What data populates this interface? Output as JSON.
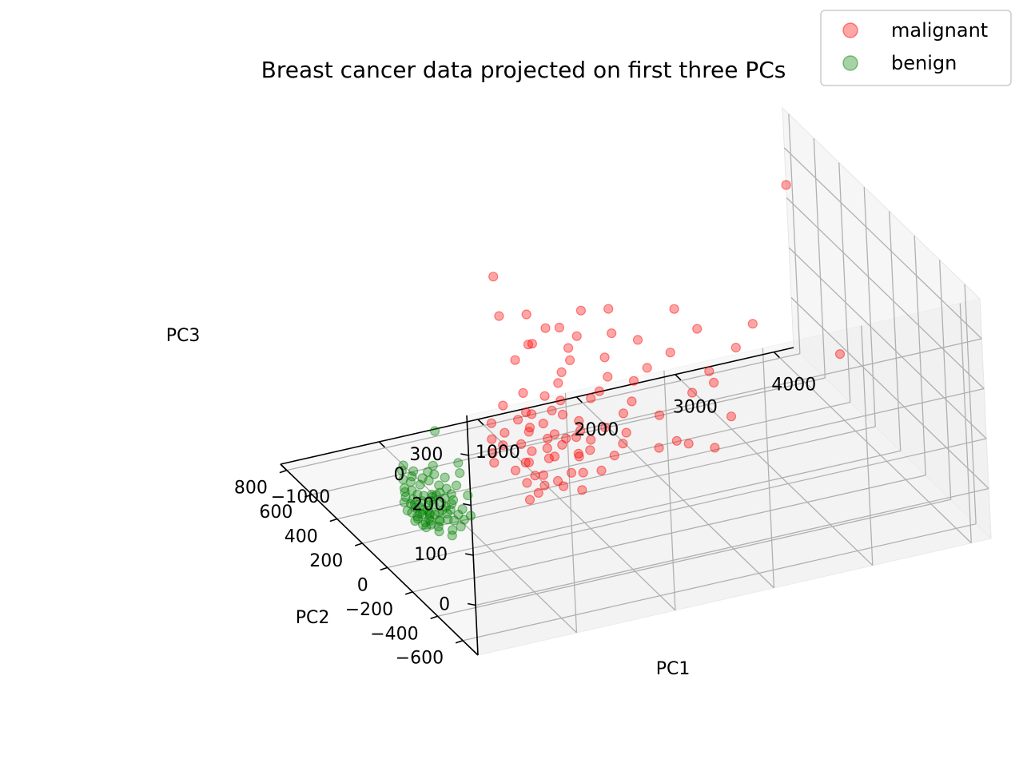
{
  "chart_data": {
    "type": "scatter",
    "projection": "3d",
    "title": "Breast cancer data projected on first three PCs",
    "xlabel": "PC1",
    "ylabel": "PC2",
    "zlabel": "PC3",
    "xlim": [
      -1000,
      4200
    ],
    "ylim": [
      -720,
      850
    ],
    "zlim": [
      -100,
      380
    ],
    "xticks": [
      -1000,
      0,
      1000,
      2000,
      3000,
      4000
    ],
    "xtick_labels": [
      "−1000",
      "0",
      "1000",
      "2000",
      "3000",
      "4000"
    ],
    "yticks": [
      -600,
      -400,
      -200,
      0,
      200,
      400,
      600,
      800
    ],
    "ytick_labels": [
      "−600",
      "−400",
      "−200",
      "0",
      "200",
      "400",
      "600",
      "800"
    ],
    "zticks": [
      0,
      100,
      200,
      300
    ],
    "ztick_labels": [
      "0",
      "100",
      "200",
      "300"
    ],
    "grid": true,
    "legend_position": "top-right",
    "series": [
      {
        "name": "malignant",
        "color": "#ff0000",
        "alpha": 0.35,
        "points": [
          [
            300,
            150,
            15
          ],
          [
            450,
            100,
            5
          ],
          [
            600,
            300,
            25
          ],
          [
            700,
            250,
            10
          ],
          [
            800,
            350,
            30
          ],
          [
            900,
            200,
            5
          ],
          [
            1000,
            400,
            20
          ],
          [
            1100,
            300,
            0
          ],
          [
            1200,
            450,
            35
          ],
          [
            1300,
            250,
            10
          ],
          [
            500,
            50,
            -10
          ],
          [
            650,
            150,
            0
          ],
          [
            750,
            0,
            -5
          ],
          [
            850,
            100,
            15
          ],
          [
            950,
            50,
            -10
          ],
          [
            1050,
            200,
            5
          ],
          [
            1150,
            150,
            -5
          ],
          [
            1250,
            350,
            20
          ],
          [
            1350,
            300,
            15
          ],
          [
            1400,
            500,
            40
          ],
          [
            400,
            -50,
            -15
          ],
          [
            550,
            0,
            -20
          ],
          [
            620,
            80,
            -8
          ],
          [
            720,
            180,
            12
          ],
          [
            820,
            280,
            22
          ],
          [
            920,
            380,
            32
          ],
          [
            1020,
            480,
            42
          ],
          [
            1120,
            120,
            -2
          ],
          [
            1220,
            220,
            8
          ],
          [
            1320,
            420,
            28
          ],
          [
            350,
            200,
            20
          ],
          [
            480,
            220,
            25
          ],
          [
            580,
            120,
            10
          ],
          [
            680,
            60,
            -5
          ],
          [
            780,
            -20,
            -12
          ],
          [
            880,
            320,
            18
          ],
          [
            980,
            260,
            6
          ],
          [
            1080,
            60,
            -18
          ],
          [
            1180,
            380,
            24
          ],
          [
            1280,
            160,
            -6
          ],
          [
            420,
            260,
            30
          ],
          [
            520,
            340,
            38
          ],
          [
            640,
            20,
            -14
          ],
          [
            740,
            420,
            44
          ],
          [
            840,
            140,
            2
          ],
          [
            940,
            -40,
            -22
          ],
          [
            1040,
            340,
            14
          ],
          [
            1140,
            240,
            4
          ],
          [
            1240,
            40,
            -16
          ],
          [
            1340,
            200,
            2
          ],
          [
            1500,
            550,
            45
          ],
          [
            1600,
            400,
            25
          ],
          [
            1700,
            650,
            60
          ],
          [
            1800,
            300,
            10
          ],
          [
            1900,
            500,
            30
          ],
          [
            1550,
            250,
            5
          ],
          [
            1650,
            600,
            50
          ],
          [
            1750,
            450,
            20
          ],
          [
            1850,
            700,
            65
          ],
          [
            1950,
            350,
            15
          ],
          [
            2000,
            600,
            40
          ],
          [
            2100,
            450,
            25
          ],
          [
            2200,
            700,
            55
          ],
          [
            2300,
            500,
            30
          ],
          [
            2400,
            650,
            45
          ],
          [
            1450,
            100,
            -10
          ],
          [
            1600,
            150,
            -5
          ],
          [
            1700,
            200,
            0
          ],
          [
            1900,
            100,
            -15
          ],
          [
            2100,
            250,
            5
          ],
          [
            1400,
            700,
            70
          ],
          [
            1600,
            750,
            80
          ],
          [
            1800,
            800,
            60
          ],
          [
            2000,
            780,
            90
          ],
          [
            1300,
            650,
            85
          ],
          [
            2500,
            300,
            20
          ],
          [
            2600,
            550,
            35
          ],
          [
            2800,
            400,
            25
          ],
          [
            3000,
            650,
            40
          ],
          [
            2700,
            150,
            0
          ],
          [
            3200,
            500,
            30
          ],
          [
            2900,
            750,
            60
          ],
          [
            3500,
            600,
            40
          ],
          [
            2200,
            100,
            -20
          ],
          [
            2400,
            50,
            -25
          ],
          [
            1200,
            800,
            110
          ],
          [
            1500,
            820,
            95
          ],
          [
            2300,
            800,
            75
          ],
          [
            1100,
            600,
            75
          ],
          [
            4000,
            300,
            30
          ],
          [
            800,
            500,
            280
          ],
          [
            1600,
            -300,
            110
          ],
          [
            3900,
            600,
            300
          ],
          [
            2600,
            200,
            60
          ]
        ]
      },
      {
        "name": "benign",
        "color": "#008000",
        "alpha": 0.35,
        "points": [
          [
            -600,
            -50,
            -20
          ],
          [
            -550,
            0,
            -15
          ],
          [
            -500,
            50,
            -10
          ],
          [
            -450,
            -100,
            -25
          ],
          [
            -400,
            100,
            -5
          ],
          [
            -650,
            20,
            -18
          ],
          [
            -620,
            -20,
            -22
          ],
          [
            -580,
            60,
            -12
          ],
          [
            -540,
            -60,
            -24
          ],
          [
            -500,
            0,
            -16
          ],
          [
            -460,
            40,
            -8
          ],
          [
            -420,
            -40,
            -20
          ],
          [
            -380,
            80,
            -2
          ],
          [
            -340,
            -80,
            -28
          ],
          [
            -300,
            120,
            4
          ],
          [
            -700,
            0,
            -20
          ],
          [
            -680,
            40,
            -14
          ],
          [
            -640,
            -40,
            -26
          ],
          [
            -600,
            80,
            -10
          ],
          [
            -560,
            -80,
            -28
          ],
          [
            -520,
            120,
            -4
          ],
          [
            -480,
            -120,
            -30
          ],
          [
            -440,
            160,
            2
          ],
          [
            -400,
            -20,
            -14
          ],
          [
            -360,
            20,
            -12
          ],
          [
            -320,
            60,
            -6
          ],
          [
            -280,
            -60,
            -22
          ],
          [
            -250,
            100,
            0
          ],
          [
            -220,
            0,
            -18
          ],
          [
            -200,
            150,
            8
          ],
          [
            -660,
            10,
            -20
          ],
          [
            -610,
            30,
            -16
          ],
          [
            -570,
            -10,
            -20
          ],
          [
            -530,
            30,
            -14
          ],
          [
            -490,
            -30,
            -20
          ],
          [
            -450,
            70,
            -8
          ],
          [
            -410,
            10,
            -14
          ],
          [
            -370,
            -50,
            -22
          ],
          [
            -330,
            90,
            -2
          ],
          [
            -290,
            30,
            -12
          ],
          [
            -590,
            100,
            -6
          ],
          [
            -550,
            140,
            0
          ],
          [
            -510,
            180,
            6
          ],
          [
            -470,
            200,
            10
          ],
          [
            -430,
            220,
            14
          ],
          [
            -390,
            180,
            8
          ],
          [
            -350,
            160,
            6
          ],
          [
            -310,
            200,
            12
          ],
          [
            -270,
            180,
            10
          ],
          [
            -230,
            220,
            16
          ],
          [
            -640,
            120,
            -4
          ],
          [
            -600,
            160,
            2
          ],
          [
            -560,
            200,
            8
          ],
          [
            -520,
            240,
            14
          ],
          [
            -480,
            260,
            18
          ],
          [
            -150,
            100,
            2
          ],
          [
            -100,
            50,
            -8
          ],
          [
            -50,
            150,
            10
          ],
          [
            0,
            200,
            16
          ],
          [
            -200,
            -50,
            -20
          ],
          [
            -580,
            -30,
            -18
          ],
          [
            -540,
            10,
            -14
          ],
          [
            -500,
            -40,
            -20
          ],
          [
            -460,
            0,
            -14
          ],
          [
            -420,
            80,
            -4
          ],
          [
            -380,
            40,
            -8
          ],
          [
            -340,
            0,
            -14
          ],
          [
            -300,
            -30,
            -18
          ],
          [
            -260,
            40,
            -8
          ],
          [
            -240,
            70,
            -4
          ],
          [
            -620,
            60,
            -12
          ],
          [
            -600,
            20,
            -16
          ],
          [
            -560,
            40,
            -14
          ],
          [
            -520,
            80,
            -8
          ],
          [
            -480,
            100,
            -4
          ],
          [
            -700,
            60,
            -14
          ],
          [
            -680,
            100,
            -8
          ],
          [
            -660,
            -30,
            -22
          ],
          [
            -640,
            80,
            -8
          ],
          [
            -620,
            140,
            0
          ],
          [
            -100,
            300,
            60
          ]
        ]
      }
    ]
  }
}
